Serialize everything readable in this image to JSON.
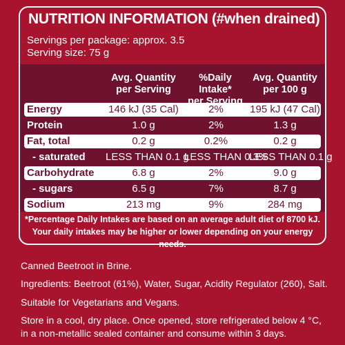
{
  "panel": {
    "title": "NUTRITION INFORMATION (#when drained)",
    "servings_per_package": "Servings per package: approx. 3.5",
    "serving_size": "Serving size: 75 g"
  },
  "table": {
    "headers": [
      [
        "Avg. Quantity",
        "per Serving"
      ],
      [
        "%Daily Intake*",
        "per Serving"
      ],
      [
        "Avg. Quantity",
        "per 100 g"
      ]
    ],
    "rows": [
      {
        "name": "Energy",
        "serving": "146 kJ (35 Cal)",
        "di": "2%",
        "per100": "195 kJ (47 Cal)"
      },
      {
        "name": "Protein",
        "serving": "1.0 g",
        "di": "2%",
        "per100": "1.3 g"
      },
      {
        "name": "Fat, total",
        "serving": "0.2 g",
        "di": "0.2%",
        "per100": "0.2 g"
      },
      {
        "name": "- saturated",
        "serving": "LESS THAN 0.1 g",
        "di": "LESS THAN 0.3%",
        "per100": "LESS THAN 0.1 g"
      },
      {
        "name": "Carbohydrate",
        "serving": "6.8 g",
        "di": "2%",
        "per100": "9.0 g"
      },
      {
        "name": "- sugars",
        "serving": "6.5 g",
        "di": "7%",
        "per100": "8.7 g"
      },
      {
        "name": "Sodium",
        "serving": "213 mg",
        "di": "9%",
        "per100": "284 mg"
      }
    ]
  },
  "footnote": [
    "*Percentage Daily Intakes are based on an average adult diet of 8700 kJ.",
    "Your daily intakes may be higher or lower depending on your energy needs."
  ],
  "product_name": "Canned Beetroot in Brine.",
  "ingredients": "Ingredients: Beetroot (61%), Water, Sugar, Acidity Regulator (260), Salt.",
  "suitability": "Suitable for Vegetarians and Vegans.",
  "storage": [
    "Store in a cool, dry place. Once opened, store refrigerated below 4 °C,",
    "in a non-metallic sealed container and consume within 3 days."
  ]
}
